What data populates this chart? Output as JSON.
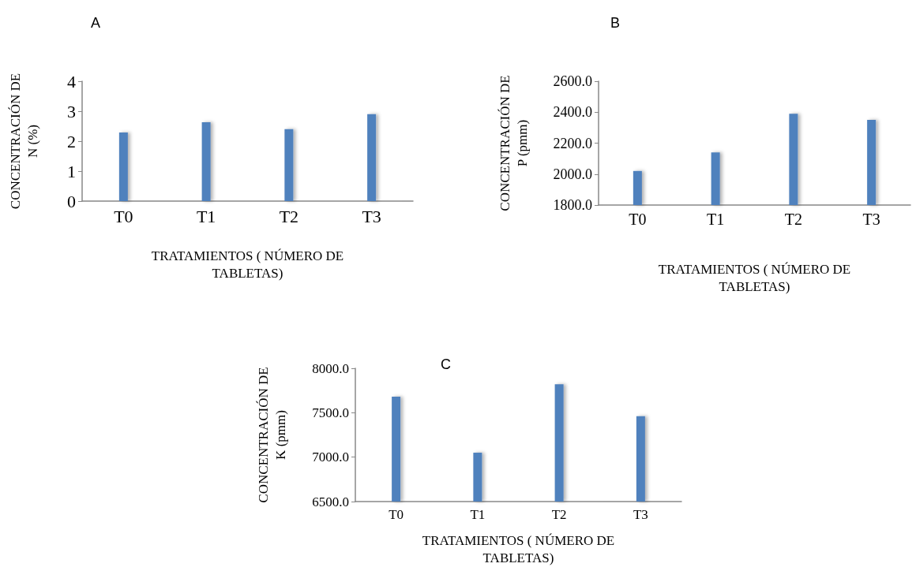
{
  "chart_data": [
    {
      "type": "bar",
      "title": "A",
      "xlabel": "TRATAMIENTOS ( NÚMERO DE\nTABLETAS)",
      "ylabel": "CONCENTRACIÓN DE\nN (%)",
      "categories": [
        "T0",
        "T1",
        "T2",
        "T3"
      ],
      "values": [
        2.29,
        2.63,
        2.4,
        2.9
      ],
      "color": "#4f81bd",
      "ylim": [
        0,
        4
      ],
      "yticks": [
        0,
        1,
        2,
        3,
        4
      ]
    },
    {
      "type": "bar",
      "title": "B",
      "xlabel": "TRATAMIENTOS ( NÚMERO DE\nTABLETAS)",
      "ylabel": "CONCENTRACIÓN DE\nP (pmm)",
      "categories": [
        "T0",
        "T1",
        "T2",
        "T3"
      ],
      "values": [
        2020,
        2140,
        2390,
        2350
      ],
      "color": "#4f81bd",
      "ylim": [
        1800,
        2600
      ],
      "yticks": [
        {
          "value": 1800,
          "label": "1800.0"
        },
        {
          "value": 2000,
          "label": "2000.0"
        },
        {
          "value": 2200,
          "label": "2200.0"
        },
        {
          "value": 2400,
          "label": "2400.0"
        },
        {
          "value": 2600,
          "label": "2600.0"
        }
      ]
    },
    {
      "type": "bar",
      "title": "C",
      "xlabel": "TRATAMIENTOS ( NÚMERO DE\nTABLETAS)",
      "ylabel": "CONCENTRACIÓN DE\nK (pmm)",
      "categories": [
        "T0",
        "T1",
        "T2",
        "T3"
      ],
      "values": [
        7680,
        7050,
        7820,
        7460
      ],
      "color": "#4f81bd",
      "ylim": [
        6500,
        8000
      ],
      "yticks": [
        {
          "value": 6500,
          "label": "6500.0"
        },
        {
          "value": 7000,
          "label": "7000.0"
        },
        {
          "value": 7500,
          "label": "7500.0"
        },
        {
          "value": 8000,
          "label": "8000.0"
        }
      ]
    }
  ]
}
